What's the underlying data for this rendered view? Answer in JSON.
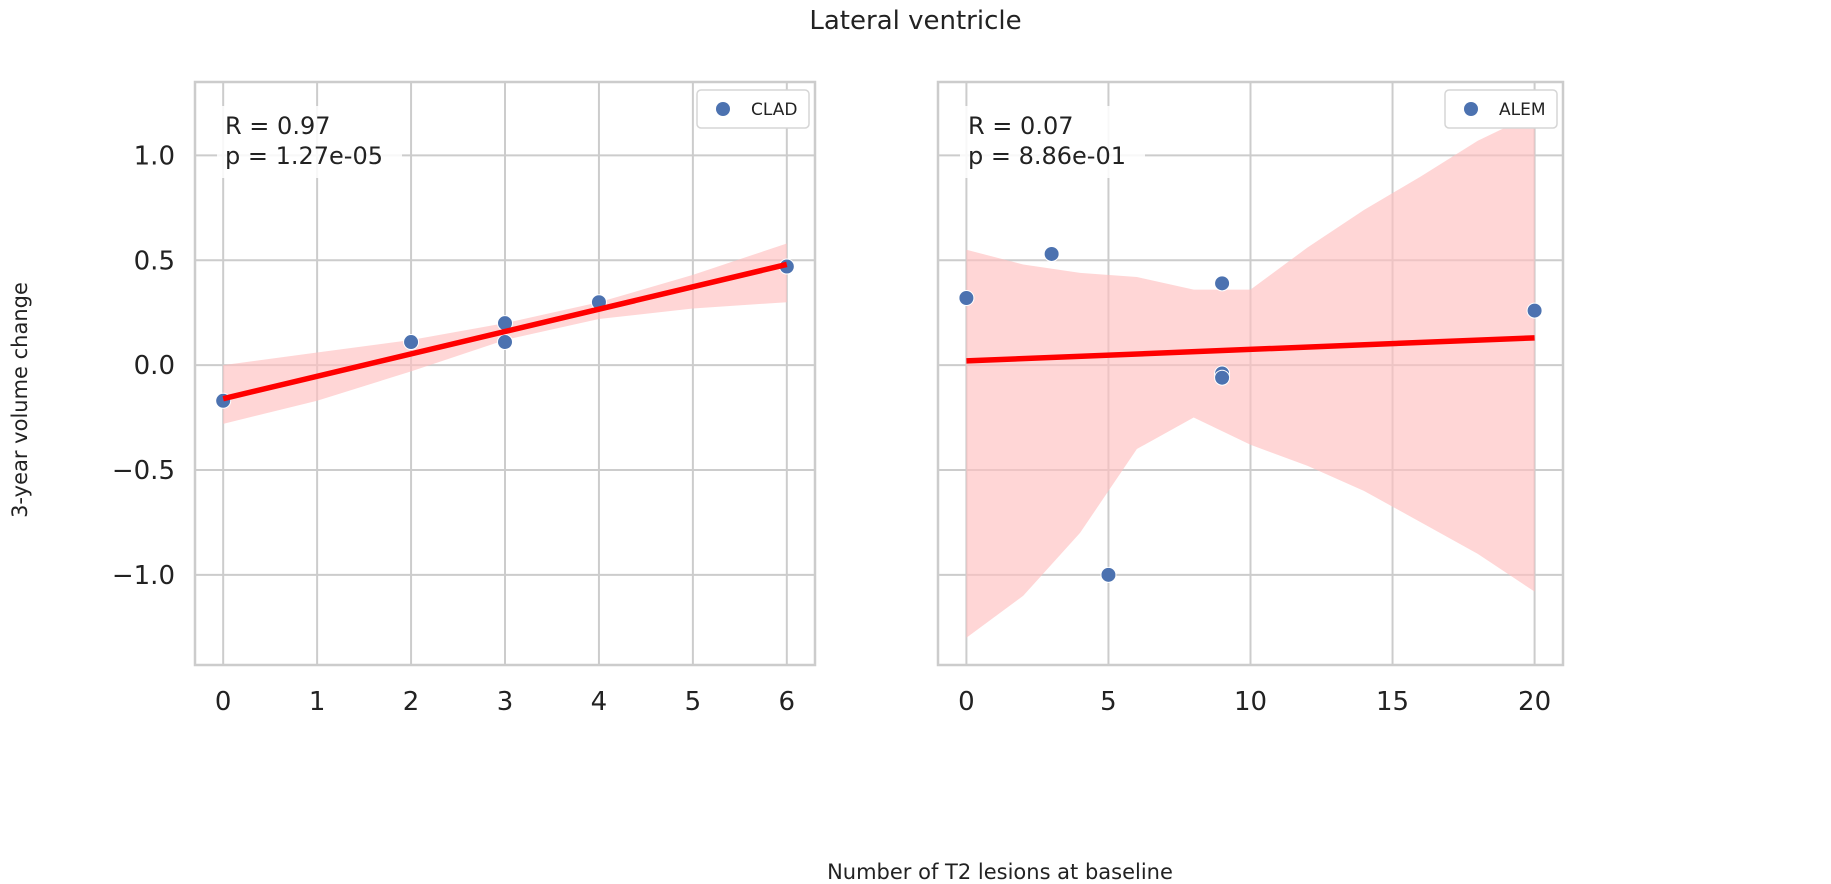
{
  "figure": {
    "suptitle": "Lateral ventricle",
    "shared_xlabel": "Number of T2 lesions at baseline",
    "shared_ylabel": "3-year volume change"
  },
  "colors": {
    "points": "#4c72b0",
    "fit_line": "#ff0000",
    "ci_band": "#ffc0c0",
    "grid": "#cccccc",
    "frame": "#cccccc"
  },
  "chart_data": [
    {
      "type": "scatter",
      "panel": "left",
      "legend": "CLAD",
      "legend_position": "top-right",
      "stats": {
        "r": "R = 0.97",
        "p": "p = 1.27e-05"
      },
      "xlim": [
        -0.3,
        6.3
      ],
      "ylim": [
        -1.43,
        1.35
      ],
      "xticks": [
        0,
        1,
        2,
        3,
        4,
        5,
        6
      ],
      "xticklabels": [
        "0",
        "1",
        "2",
        "3",
        "4",
        "5",
        "6"
      ],
      "yticks": [
        -1.0,
        -0.5,
        0.0,
        0.5,
        1.0
      ],
      "yticklabels": [
        "−1.0",
        "−0.5",
        "0.0",
        "0.5",
        "1.0"
      ],
      "grid": true,
      "points": [
        {
          "x": 0,
          "y": -0.17
        },
        {
          "x": 2,
          "y": 0.11
        },
        {
          "x": 3,
          "y": 0.2
        },
        {
          "x": 3,
          "y": 0.11
        },
        {
          "x": 4,
          "y": 0.3
        },
        {
          "x": 6,
          "y": 0.47
        }
      ],
      "fit": {
        "x": [
          0,
          6
        ],
        "y": [
          -0.16,
          0.48
        ]
      },
      "ci": {
        "x": [
          0,
          1,
          2,
          3,
          4,
          5,
          6
        ],
        "upper": [
          0.0,
          0.06,
          0.12,
          0.2,
          0.3,
          0.43,
          0.58
        ],
        "lower": [
          -0.28,
          -0.17,
          -0.03,
          0.12,
          0.22,
          0.27,
          0.3
        ]
      }
    },
    {
      "type": "scatter",
      "panel": "right",
      "legend": "ALEM",
      "legend_position": "top-right",
      "stats": {
        "r": "R = 0.07",
        "p": "p = 8.86e-01"
      },
      "xlim": [
        -1,
        21
      ],
      "ylim": [
        -1.43,
        1.35
      ],
      "xticks": [
        0,
        5,
        10,
        15,
        20
      ],
      "xticklabels": [
        "0",
        "5",
        "10",
        "15",
        "20"
      ],
      "yticks": [
        -1.0,
        -0.5,
        0.0,
        0.5,
        1.0
      ],
      "grid": true,
      "points": [
        {
          "x": 0,
          "y": 0.32
        },
        {
          "x": 3,
          "y": 0.53
        },
        {
          "x": 5,
          "y": -1.0
        },
        {
          "x": 9,
          "y": 0.39
        },
        {
          "x": 9,
          "y": -0.04
        },
        {
          "x": 9,
          "y": -0.06
        },
        {
          "x": 20,
          "y": 0.26
        }
      ],
      "fit": {
        "x": [
          0,
          20
        ],
        "y": [
          0.02,
          0.13
        ]
      },
      "ci": {
        "x": [
          0,
          2,
          4,
          6,
          8,
          10,
          12,
          14,
          16,
          18,
          20
        ],
        "upper": [
          0.55,
          0.48,
          0.44,
          0.42,
          0.36,
          0.36,
          0.56,
          0.74,
          0.9,
          1.07,
          1.2
        ],
        "lower": [
          -1.3,
          -1.1,
          -0.8,
          -0.4,
          -0.25,
          -0.38,
          -0.48,
          -0.6,
          -0.75,
          -0.9,
          -1.08
        ]
      }
    }
  ]
}
